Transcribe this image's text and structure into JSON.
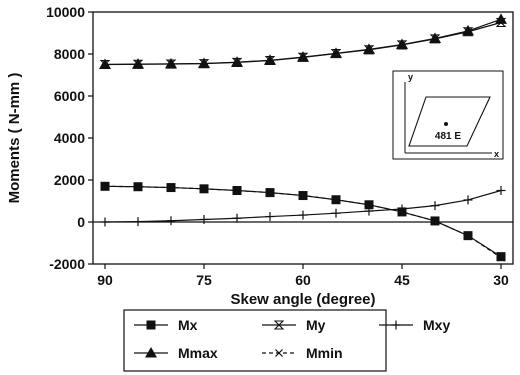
{
  "chart_data": {
    "type": "line",
    "title": "",
    "xlabel": "Skew angle (degree)",
    "ylabel": "Moments ( N-mm )",
    "xlim": [
      90,
      30
    ],
    "ylim": [
      -2000,
      10000
    ],
    "x_ticks": [
      "90",
      "75",
      "60",
      "45",
      "30"
    ],
    "x_tick_values": [
      90,
      75,
      60,
      45,
      30
    ],
    "y_ticks": [
      "-2000",
      "0",
      "2000",
      "4000",
      "6000",
      "8000",
      "10000"
    ],
    "y_tick_values": [
      -2000,
      0,
      2000,
      4000,
      6000,
      8000,
      10000
    ],
    "x": [
      90,
      85,
      80,
      75,
      70,
      65,
      60,
      55,
      50,
      45,
      40,
      35,
      30
    ],
    "series": [
      {
        "name": "Mx",
        "marker": "square",
        "values": [
          1700,
          1680,
          1640,
          1580,
          1500,
          1400,
          1260,
          1060,
          820,
          480,
          50,
          -650,
          -1650
        ]
      },
      {
        "name": "My",
        "marker": "hourglass",
        "values": [
          7500,
          7510,
          7520,
          7540,
          7600,
          7690,
          7840,
          8020,
          8200,
          8430,
          8720,
          9060,
          9500
        ]
      },
      {
        "name": "Mxy",
        "marker": "plus",
        "values": [
          0,
          20,
          60,
          120,
          180,
          260,
          330,
          420,
          520,
          620,
          780,
          1050,
          1500
        ]
      },
      {
        "name": "Mmax",
        "marker": "triangle",
        "values": [
          7500,
          7520,
          7530,
          7550,
          7610,
          7700,
          7850,
          8030,
          8220,
          8450,
          8740,
          9100,
          9650
        ]
      },
      {
        "name": "Mmin",
        "marker": "cross",
        "values": [
          1700,
          1680,
          1640,
          1580,
          1500,
          1400,
          1260,
          1060,
          820,
          480,
          50,
          -650,
          -1700
        ]
      }
    ],
    "zero_line": true,
    "legend_position": "bottom",
    "inset": {
      "y_label": "y",
      "x_label": "x",
      "element_label": "481 E"
    }
  }
}
